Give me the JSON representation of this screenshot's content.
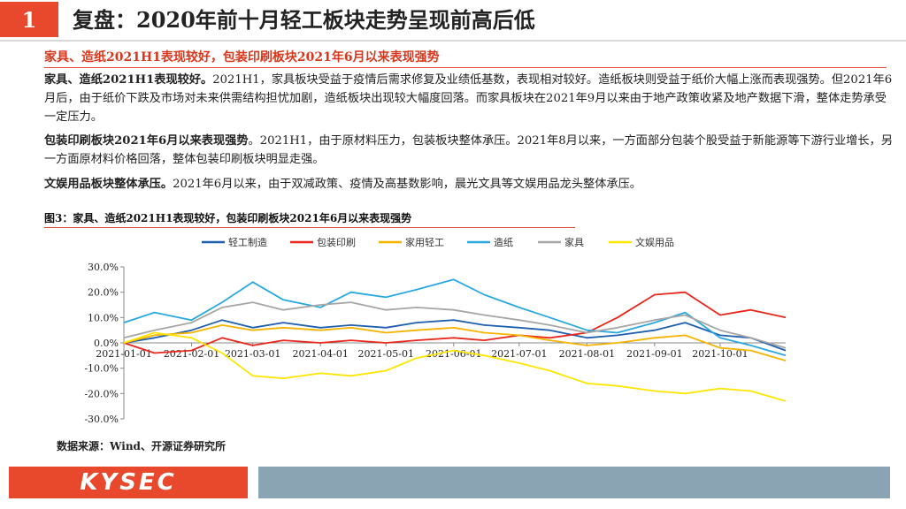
{
  "header": {
    "number": "1",
    "title": "复盘：2020年前十月轻工板块走势呈现前高后低"
  },
  "subtitle": "家具、造纸2021H1表现较好，包装印刷板块2021年6月以来表现强势",
  "paragraphs": [
    {
      "lead": "家具、造纸2021H1表现较好。",
      "body": "2021H1，家具板块受益于疫情后需求修复及业绩低基数，表现相对较好。造纸板块则受益于纸价大幅上涨而表现强势。但2021年6月后，由于纸价下跌及市场对未来供需结构担忧加剧，造纸板块出现较大幅度回落。而家具板块在2021年9月以来由于地产政策收紧及地产数据下滑，整体走势承受一定压力。"
    },
    {
      "lead": "包装印刷板块2021年6月以来表现强势",
      "body": "。2021H1，由于原材料压力，包装板块整体承压。2021年8月以来，一方面部分包装个股受益于新能源等下游行业增长，另一方面原材料价格回落，整体包装印刷板块明显走强。"
    },
    {
      "lead": "文娱用品板块整体承压。",
      "body": "2021年6月以来，由于双减政策、疫情及高基数影响，晨光文具等文娱用品龙头整体承压。"
    }
  ],
  "figure": {
    "caption": "图3：家具、造纸2021H1表现较好，包装印刷板块2021年6月以来表现强势",
    "source": "数据来源：Wind、开源证券研究所"
  },
  "footer": {
    "logo": "KYSEC"
  },
  "chart_data": {
    "type": "line",
    "x_labels": [
      "2021-01-01",
      "2021-02-01",
      "2021-03-01",
      "2021-04-01",
      "2021-05-01",
      "2021-06-01",
      "2021-07-01",
      "2021-08-01",
      "2021-09-01",
      "2021-10-01"
    ],
    "x_range": [
      "2021-01-01",
      "2021-10-31"
    ],
    "ylim": [
      -30,
      30
    ],
    "y_ticks": [
      30,
      20,
      10,
      0,
      -10,
      -20,
      -30
    ],
    "y_tick_labels": [
      "30.0%",
      "20.0%",
      "10.0%",
      "0.0%",
      "-10.0%",
      "-20.0%",
      "-30.0%"
    ],
    "legend_position": "top",
    "grid": false,
    "series": [
      {
        "name": "轻工制造",
        "color": "#1f5fae",
        "x": [
          "2021-01-01",
          "2021-01-15",
          "2021-02-01",
          "2021-02-15",
          "2021-03-01",
          "2021-03-15",
          "2021-04-01",
          "2021-04-15",
          "2021-05-01",
          "2021-05-15",
          "2021-06-01",
          "2021-06-15",
          "2021-07-01",
          "2021-07-15",
          "2021-08-01",
          "2021-08-15",
          "2021-09-01",
          "2021-09-15",
          "2021-10-01",
          "2021-10-15",
          "2021-10-31"
        ],
        "values": [
          0,
          2,
          5,
          9,
          6,
          8,
          6,
          7,
          6,
          8,
          9,
          7,
          6,
          5,
          2,
          3,
          5,
          8,
          3,
          2,
          -3
        ]
      },
      {
        "name": "包装印刷",
        "color": "#e8261b",
        "x": [
          "2021-01-01",
          "2021-01-15",
          "2021-02-01",
          "2021-02-15",
          "2021-03-01",
          "2021-03-15",
          "2021-04-01",
          "2021-04-15",
          "2021-05-01",
          "2021-05-15",
          "2021-06-01",
          "2021-06-15",
          "2021-07-01",
          "2021-07-15",
          "2021-08-01",
          "2021-08-15",
          "2021-09-01",
          "2021-09-15",
          "2021-10-01",
          "2021-10-15",
          "2021-10-31"
        ],
        "values": [
          0,
          -4,
          -3,
          2,
          -1,
          1,
          0,
          1,
          0,
          1,
          2,
          1,
          3,
          2,
          4,
          10,
          19,
          20,
          11,
          13,
          10
        ]
      },
      {
        "name": "家用轻工",
        "color": "#f5b400",
        "x": [
          "2021-01-01",
          "2021-01-15",
          "2021-02-01",
          "2021-02-15",
          "2021-03-01",
          "2021-03-15",
          "2021-04-01",
          "2021-04-15",
          "2021-05-01",
          "2021-05-15",
          "2021-06-01",
          "2021-06-15",
          "2021-07-01",
          "2021-07-15",
          "2021-08-01",
          "2021-08-15",
          "2021-09-01",
          "2021-09-15",
          "2021-10-01",
          "2021-10-15",
          "2021-10-31"
        ],
        "values": [
          0,
          3,
          4,
          7,
          5,
          6,
          5,
          6,
          4,
          5,
          6,
          4,
          3,
          1,
          -1,
          0,
          2,
          3,
          -2,
          -3,
          -7
        ]
      },
      {
        "name": "造纸",
        "color": "#29a8e0",
        "x": [
          "2021-01-01",
          "2021-01-15",
          "2021-02-01",
          "2021-02-15",
          "2021-03-01",
          "2021-03-15",
          "2021-04-01",
          "2021-04-15",
          "2021-05-01",
          "2021-05-15",
          "2021-06-01",
          "2021-06-15",
          "2021-07-01",
          "2021-07-15",
          "2021-08-01",
          "2021-08-15",
          "2021-09-01",
          "2021-09-15",
          "2021-10-01",
          "2021-10-15",
          "2021-10-31"
        ],
        "values": [
          8,
          12,
          9,
          16,
          24,
          17,
          14,
          20,
          18,
          21,
          25,
          19,
          14,
          10,
          5,
          4,
          8,
          12,
          2,
          -1,
          -5
        ]
      },
      {
        "name": "家具",
        "color": "#a6a6a6",
        "x": [
          "2021-01-01",
          "2021-01-15",
          "2021-02-01",
          "2021-02-15",
          "2021-03-01",
          "2021-03-15",
          "2021-04-01",
          "2021-04-15",
          "2021-05-01",
          "2021-05-15",
          "2021-06-01",
          "2021-06-15",
          "2021-07-01",
          "2021-07-15",
          "2021-08-01",
          "2021-08-15",
          "2021-09-01",
          "2021-09-15",
          "2021-10-01",
          "2021-10-15",
          "2021-10-31"
        ],
        "values": [
          2,
          5,
          8,
          14,
          16,
          13,
          15,
          16,
          13,
          14,
          13,
          11,
          9,
          7,
          4,
          6,
          9,
          11,
          5,
          2,
          -2
        ]
      },
      {
        "name": "文娱用品",
        "color": "#ffe600",
        "x": [
          "2021-01-01",
          "2021-01-15",
          "2021-02-01",
          "2021-02-15",
          "2021-03-01",
          "2021-03-15",
          "2021-04-01",
          "2021-04-15",
          "2021-05-01",
          "2021-05-15",
          "2021-06-01",
          "2021-06-15",
          "2021-07-01",
          "2021-07-15",
          "2021-08-01",
          "2021-08-15",
          "2021-09-01",
          "2021-09-15",
          "2021-10-01",
          "2021-10-15",
          "2021-10-31"
        ],
        "values": [
          0,
          4,
          2,
          -4,
          -13,
          -14,
          -12,
          -13,
          -11,
          -6,
          -3,
          -5,
          -8,
          -11,
          -16,
          -17,
          -19,
          -20,
          -18,
          -19,
          -23
        ]
      }
    ]
  }
}
